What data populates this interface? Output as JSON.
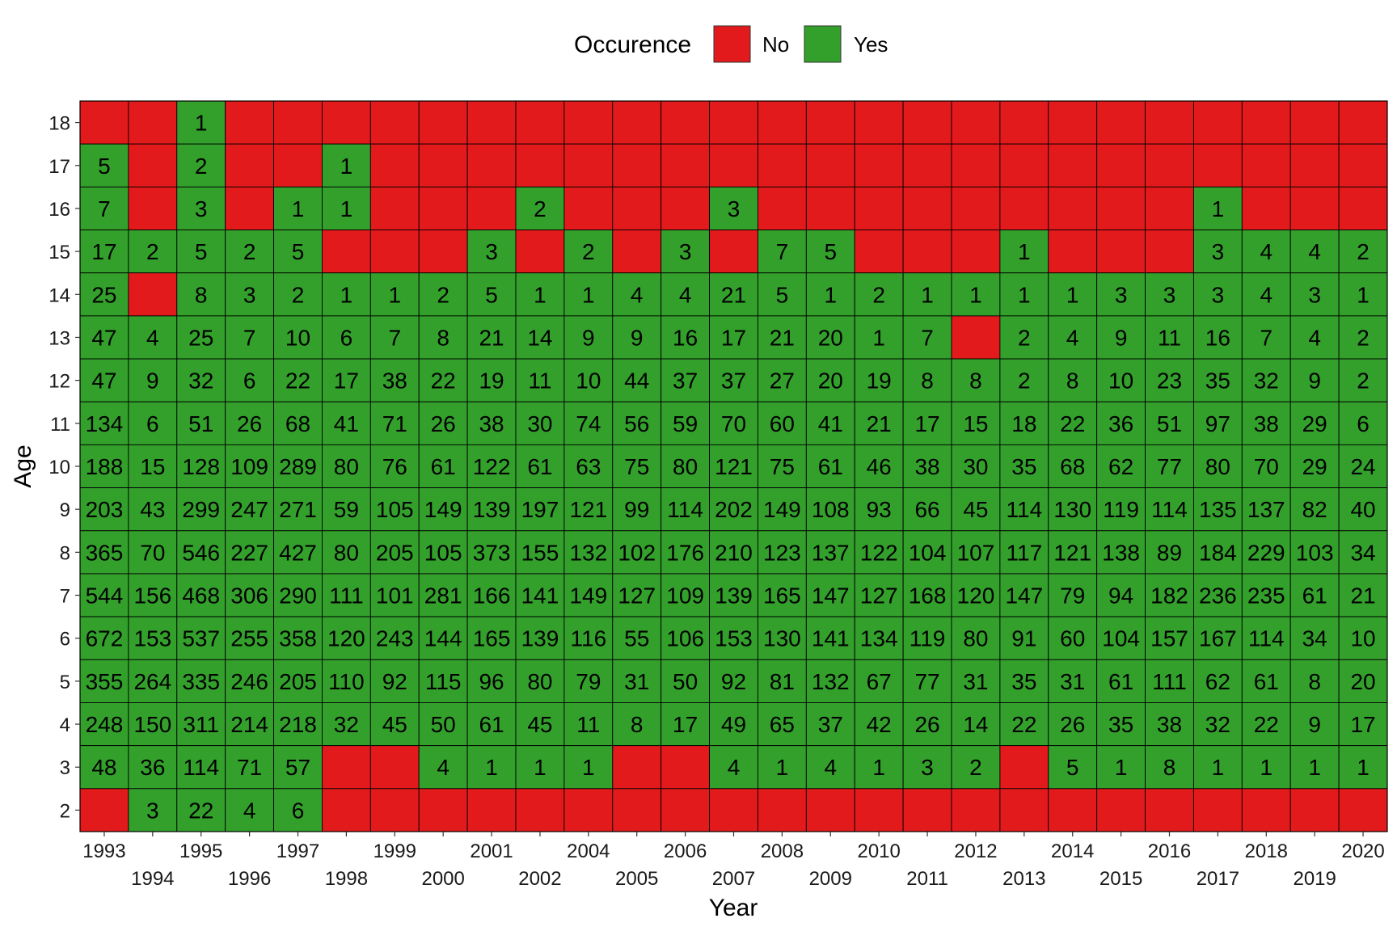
{
  "chart_data": {
    "type": "heatmap",
    "title": "",
    "xlabel": "Year",
    "ylabel": "Age",
    "legend": {
      "title": "Occurence",
      "position": "top",
      "entries": [
        {
          "label": "No",
          "color": "#e31a1c"
        },
        {
          "label": "Yes",
          "color": "#33a02c"
        }
      ]
    },
    "x": [
      "1993",
      "1994",
      "1995",
      "1996",
      "1997",
      "1998",
      "1999",
      "2000",
      "2001",
      "2002",
      "2004",
      "2005",
      "2006",
      "2007",
      "2008",
      "2009",
      "2010",
      "2011",
      "2012",
      "2013",
      "2014",
      "2015",
      "2016",
      "2017",
      "2018",
      "2019",
      "2020"
    ],
    "y": [
      "18",
      "17",
      "16",
      "15",
      "14",
      "13",
      "12",
      "11",
      "10",
      "9",
      "8",
      "7",
      "6",
      "5",
      "4",
      "3",
      "2"
    ],
    "values": [
      [
        null,
        null,
        1,
        null,
        null,
        null,
        null,
        null,
        null,
        null,
        null,
        null,
        null,
        null,
        null,
        null,
        null,
        null,
        null,
        null,
        null,
        null,
        null,
        null,
        null,
        null,
        null
      ],
      [
        5,
        null,
        2,
        null,
        null,
        1,
        null,
        null,
        null,
        null,
        null,
        null,
        null,
        null,
        null,
        null,
        null,
        null,
        null,
        null,
        null,
        null,
        null,
        null,
        null,
        null,
        null
      ],
      [
        7,
        null,
        3,
        null,
        1,
        1,
        null,
        null,
        null,
        2,
        null,
        null,
        null,
        3,
        null,
        null,
        null,
        null,
        null,
        null,
        null,
        null,
        null,
        1,
        null,
        null,
        null
      ],
      [
        17,
        2,
        5,
        2,
        5,
        null,
        null,
        null,
        3,
        null,
        2,
        null,
        3,
        null,
        7,
        5,
        null,
        null,
        null,
        1,
        null,
        null,
        null,
        3,
        4,
        4,
        2
      ],
      [
        25,
        null,
        8,
        3,
        2,
        1,
        1,
        2,
        5,
        1,
        1,
        4,
        4,
        21,
        5,
        1,
        2,
        1,
        1,
        1,
        1,
        3,
        3,
        3,
        4,
        3,
        1
      ],
      [
        47,
        4,
        25,
        7,
        10,
        6,
        7,
        8,
        21,
        14,
        9,
        9,
        16,
        17,
        21,
        20,
        1,
        7,
        null,
        2,
        4,
        9,
        11,
        16,
        7,
        4,
        2
      ],
      [
        47,
        9,
        32,
        6,
        22,
        17,
        38,
        22,
        19,
        11,
        10,
        44,
        37,
        37,
        27,
        20,
        19,
        8,
        8,
        2,
        8,
        10,
        23,
        35,
        32,
        9,
        2
      ],
      [
        134,
        6,
        51,
        26,
        68,
        41,
        71,
        26,
        38,
        30,
        74,
        56,
        59,
        70,
        60,
        41,
        21,
        17,
        15,
        18,
        22,
        36,
        51,
        97,
        38,
        29,
        6
      ],
      [
        188,
        15,
        128,
        109,
        289,
        80,
        76,
        61,
        122,
        61,
        63,
        75,
        80,
        121,
        75,
        61,
        46,
        38,
        30,
        35,
        68,
        62,
        77,
        80,
        70,
        29,
        24
      ],
      [
        203,
        43,
        299,
        247,
        271,
        59,
        105,
        149,
        139,
        197,
        121,
        99,
        114,
        202,
        149,
        108,
        93,
        66,
        45,
        114,
        130,
        119,
        114,
        135,
        137,
        82,
        40
      ],
      [
        365,
        70,
        546,
        227,
        427,
        80,
        205,
        105,
        373,
        155,
        132,
        102,
        176,
        210,
        123,
        137,
        122,
        104,
        107,
        117,
        121,
        138,
        89,
        184,
        229,
        103,
        34
      ],
      [
        544,
        156,
        468,
        306,
        290,
        111,
        101,
        281,
        166,
        141,
        149,
        127,
        109,
        139,
        165,
        147,
        127,
        168,
        120,
        147,
        79,
        94,
        182,
        236,
        235,
        61,
        21
      ],
      [
        672,
        153,
        537,
        255,
        358,
        120,
        243,
        144,
        165,
        139,
        116,
        55,
        106,
        153,
        130,
        141,
        134,
        119,
        80,
        91,
        60,
        104,
        157,
        167,
        114,
        34,
        10
      ],
      [
        355,
        264,
        335,
        246,
        205,
        110,
        92,
        115,
        96,
        80,
        79,
        31,
        50,
        92,
        81,
        132,
        67,
        77,
        31,
        35,
        31,
        61,
        111,
        62,
        61,
        8,
        20
      ],
      [
        248,
        150,
        311,
        214,
        218,
        32,
        45,
        50,
        61,
        45,
        11,
        8,
        17,
        49,
        65,
        37,
        42,
        26,
        14,
        22,
        26,
        35,
        38,
        32,
        22,
        9,
        17
      ],
      [
        48,
        36,
        114,
        71,
        57,
        null,
        null,
        4,
        1,
        1,
        1,
        null,
        null,
        4,
        1,
        4,
        1,
        3,
        2,
        null,
        5,
        1,
        8,
        1,
        1,
        1,
        1
      ],
      [
        null,
        3,
        22,
        4,
        6,
        null,
        null,
        null,
        null,
        null,
        null,
        null,
        null,
        null,
        null,
        null,
        null,
        null,
        null,
        null,
        null,
        null,
        null,
        null,
        null,
        null,
        null
      ]
    ],
    "grid": false
  }
}
